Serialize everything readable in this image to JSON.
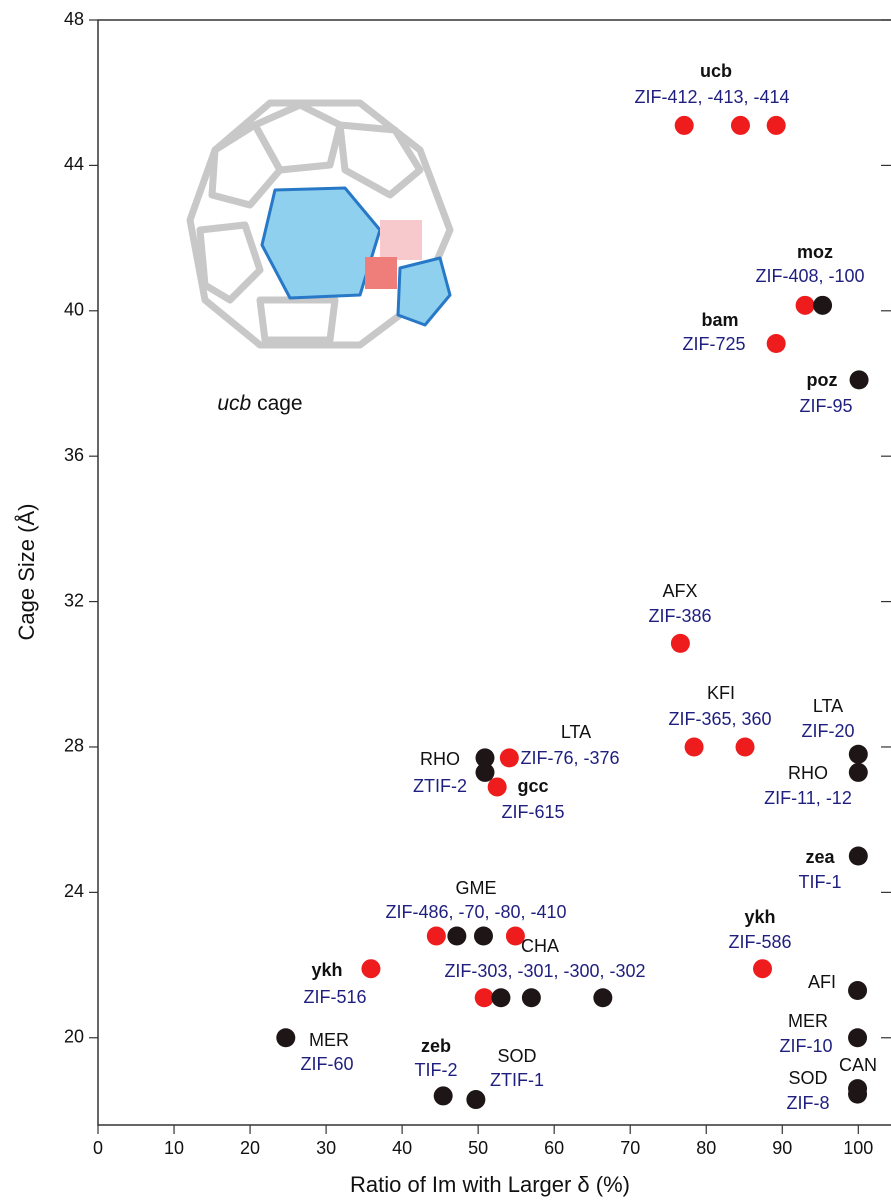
{
  "chart_data": {
    "type": "scatter",
    "xlabel": "Ratio of Im with Larger δ (%)",
    "ylabel": "Cage Size (Å)",
    "xlim": [
      0,
      104.3
    ],
    "ylim": [
      17.6,
      48
    ],
    "xticks": [
      0,
      10,
      20,
      30,
      40,
      50,
      60,
      70,
      80,
      90,
      100
    ],
    "yticks": [
      20,
      24,
      28,
      32,
      36,
      40,
      44,
      48
    ],
    "series": [
      {
        "color": "#ee1c1c",
        "x": [
          77.1,
          84.5,
          89.2,
          93.0,
          89.2,
          76.6,
          78.4,
          85.1,
          54.1,
          52.5,
          44.5,
          54.9,
          87.4,
          35.9,
          50.8
        ],
        "values": [
          45.1,
          45.1,
          45.1,
          40.15,
          39.1,
          30.85,
          28.0,
          28.0,
          27.7,
          26.9,
          22.8,
          22.8,
          21.9,
          21.9,
          21.1
        ]
      },
      {
        "color": "#1e1616",
        "x": [
          95.3,
          100.1,
          50.9,
          50.9,
          100,
          100,
          100,
          47.2,
          50.7,
          53.0,
          57.0,
          66.4,
          99.9,
          24.7,
          99.9,
          99.9,
          99.9,
          45.4,
          49.7
        ],
        "values": [
          40.15,
          38.1,
          27.7,
          27.3,
          27.8,
          27.3,
          25.0,
          22.8,
          22.8,
          21.1,
          21.1,
          21.1,
          21.3,
          20.0,
          20.0,
          18.6,
          18.45,
          18.4,
          18.3
        ]
      }
    ],
    "inset_caption": {
      "italic": "ucb",
      "text": "cage"
    },
    "annotations": [
      {
        "text": "ucb",
        "color": "#111111",
        "bold": true
      },
      {
        "text": "ZIF-412, -413, -414",
        "color": "#1f1f80",
        "bold": false
      },
      {
        "text": "moz",
        "color": "#111111",
        "bold": true
      },
      {
        "text": "ZIF-408, -100",
        "color": "#1f1f80",
        "bold": false
      },
      {
        "text": "bam",
        "color": "#111111",
        "bold": true
      },
      {
        "text": "ZIF-725",
        "color": "#1f1f80",
        "bold": false
      },
      {
        "text": "poz",
        "color": "#111111",
        "bold": true
      },
      {
        "text": "ZIF-95",
        "color": "#1f1f80",
        "bold": false
      },
      {
        "text": "AFX",
        "color": "#111111",
        "bold": false
      },
      {
        "text": "ZIF-386",
        "color": "#1f1f80",
        "bold": false
      },
      {
        "text": "KFI",
        "color": "#111111",
        "bold": false
      },
      {
        "text": "ZIF-365, 360",
        "color": "#1f1f80",
        "bold": false
      },
      {
        "text": "LTA",
        "color": "#111111",
        "bold": false
      },
      {
        "text": "ZIF-76, -376",
        "color": "#1f1f80",
        "bold": false
      },
      {
        "text": "LTA",
        "color": "#111111",
        "bold": false
      },
      {
        "text": "ZIF-20",
        "color": "#1f1f80",
        "bold": false
      },
      {
        "text": "RHO",
        "color": "#111111",
        "bold": false
      },
      {
        "text": "ZTIF-2",
        "color": "#1f1f80",
        "bold": false
      },
      {
        "text": "gcc",
        "color": "#111111",
        "bold": true
      },
      {
        "text": "ZIF-615",
        "color": "#1f1f80",
        "bold": false
      },
      {
        "text": "RHO",
        "color": "#111111",
        "bold": false
      },
      {
        "text": "ZIF-11, -12",
        "color": "#1f1f80",
        "bold": false
      },
      {
        "text": "zea",
        "color": "#111111",
        "bold": true
      },
      {
        "text": "TIF-1",
        "color": "#1f1f80",
        "bold": false
      },
      {
        "text": "GME",
        "color": "#111111",
        "bold": false
      },
      {
        "text": "ZIF-486, -70, -80, -410",
        "color": "#1f1f80",
        "bold": false
      },
      {
        "text": "ykh",
        "color": "#111111",
        "bold": true
      },
      {
        "text": "ZIF-586",
        "color": "#1f1f80",
        "bold": false
      },
      {
        "text": "CHA",
        "color": "#111111",
        "bold": false
      },
      {
        "text": "ZIF-303, -301, -300, -302",
        "color": "#1f1f80",
        "bold": false
      },
      {
        "text": "ykh",
        "color": "#111111",
        "bold": true
      },
      {
        "text": "ZIF-516",
        "color": "#1f1f80",
        "bold": false
      },
      {
        "text": "AFI",
        "color": "#111111",
        "bold": false
      },
      {
        "text": "MER",
        "color": "#111111",
        "bold": false
      },
      {
        "text": "ZIF-60",
        "color": "#1f1f80",
        "bold": false
      },
      {
        "text": "MER",
        "color": "#111111",
        "bold": false
      },
      {
        "text": "ZIF-10",
        "color": "#1f1f80",
        "bold": false
      },
      {
        "text": "zeb",
        "color": "#111111",
        "bold": true
      },
      {
        "text": "TIF-2",
        "color": "#1f1f80",
        "bold": false
      },
      {
        "text": "SOD",
        "color": "#111111",
        "bold": false
      },
      {
        "text": "ZTIF-1",
        "color": "#1f1f80",
        "bold": false
      },
      {
        "text": "CAN",
        "color": "#111111",
        "bold": false
      },
      {
        "text": "SOD",
        "color": "#111111",
        "bold": false
      },
      {
        "text": "ZIF-8",
        "color": "#1f1f80",
        "bold": false
      }
    ]
  }
}
